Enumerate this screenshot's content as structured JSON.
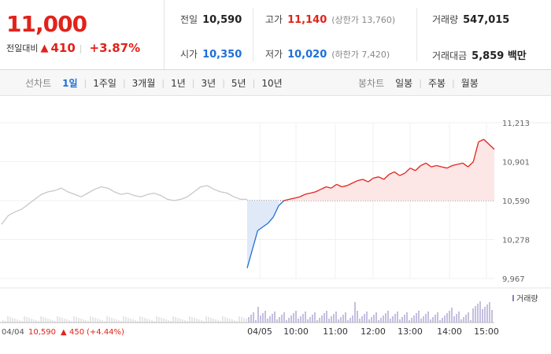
{
  "price": {
    "current": "11,000",
    "change_label": "전일대비",
    "change_arrow": "▲",
    "change_abs": "410",
    "change_pct": "+3.87%"
  },
  "stats": {
    "prev": {
      "label": "전일",
      "value": "10,590"
    },
    "open": {
      "label": "시가",
      "value": "10,350"
    },
    "high": {
      "label": "고가",
      "value": "11,140",
      "sub": "(상한가 13,760)"
    },
    "low": {
      "label": "저가",
      "value": "10,020",
      "sub": "(하한가 7,420)"
    },
    "volume": {
      "label": "거래량",
      "value": "547,015"
    },
    "amount": {
      "label": "거래대금",
      "value": "5,859 백만"
    }
  },
  "line_tabs": {
    "label": "선차트",
    "items": [
      "1일",
      "1주일",
      "3개월",
      "1년",
      "3년",
      "5년",
      "10년"
    ],
    "active": "1일"
  },
  "candle_tabs": {
    "label": "봉차트",
    "items": [
      "일봉",
      "주봉",
      "월봉"
    ]
  },
  "colors": {
    "up": "#e0231b",
    "down": "#1f6fd8",
    "prev_day": "#c8c8c8",
    "volume": "#8a7fc0"
  },
  "chart_data": {
    "type": "line",
    "y_ticks": [
      "11,213",
      "10,901",
      "10,590",
      "10,278",
      "9,967"
    ],
    "ylim": [
      9967,
      11213
    ],
    "baseline": 10590,
    "x_ticks": [
      "04/05",
      "10:00",
      "11:00",
      "12:00",
      "13:00",
      "14:00",
      "15:00"
    ],
    "volume_label": "거래량",
    "prev_day_footer": {
      "date": "04/04",
      "close": "10,590",
      "arrow": "▲",
      "change": "450",
      "pct": "(+4.44%)"
    },
    "prev_day_series": [
      10400,
      10470,
      10500,
      10520,
      10560,
      10600,
      10640,
      10660,
      10670,
      10690,
      10660,
      10640,
      10620,
      10650,
      10680,
      10700,
      10690,
      10660,
      10640,
      10650,
      10630,
      10620,
      10640,
      10650,
      10630,
      10600,
      10590,
      10600,
      10620,
      10660,
      10700,
      10710,
      10680,
      10660,
      10650,
      10620,
      10600,
      10600
    ],
    "today_series": [
      10050,
      10200,
      10350,
      10380,
      10410,
      10460,
      10550,
      10590,
      10600,
      10610,
      10620,
      10640,
      10650,
      10660,
      10680,
      10700,
      10690,
      10720,
      10700,
      10710,
      10730,
      10750,
      10760,
      10740,
      10770,
      10780,
      10760,
      10800,
      10820,
      10790,
      10810,
      10850,
      10830,
      10870,
      10890,
      10860,
      10870,
      10860,
      10850,
      10870,
      10880,
      10890,
      10860,
      10900,
      11060,
      11080,
      11040,
      11000
    ]
  }
}
